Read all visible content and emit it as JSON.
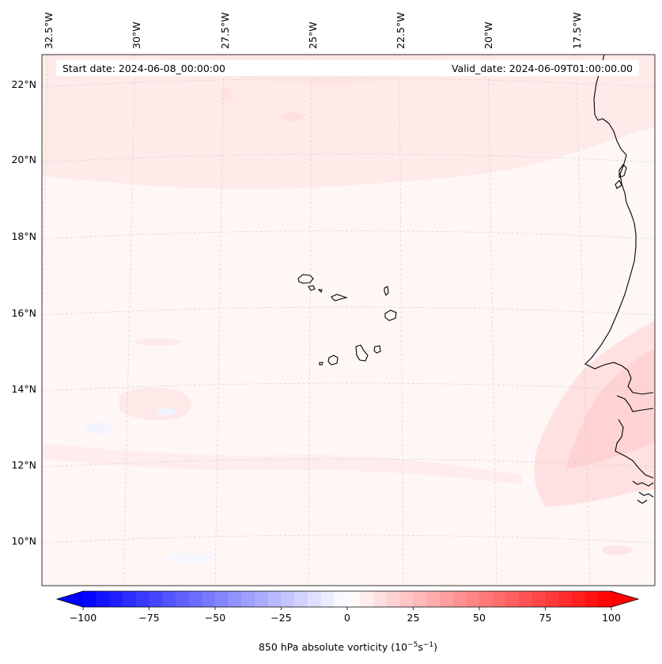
{
  "header": {
    "start_date": "Start date: 2024-06-08_00:00:00",
    "valid_date": "Valid_date: 2024-06-09T01:00:00.00"
  },
  "lon_labels": [
    "32.5°W",
    "30°W",
    "27.5°W",
    "25°W",
    "22.5°W",
    "20°W",
    "17.5°W"
  ],
  "lat_labels": [
    "22°N",
    "20°N",
    "18°N",
    "16°N",
    "14°N",
    "12°N",
    "10°N"
  ],
  "colorbar": {
    "label": "850 hPa absolute vorticity (10",
    "label_exp1": "−5",
    "label_mid": "s",
    "label_exp2": "−1",
    "label_end": ")",
    "ticks": [
      "−100",
      "−75",
      "−50",
      "−25",
      "0",
      "25",
      "50",
      "75",
      "100"
    ],
    "min": -100,
    "max": 100,
    "step": 5,
    "extend": "both",
    "color_negative": "#0000ff",
    "color_positive": "#ff0000",
    "color_zero": "#ffffff"
  },
  "map": {
    "lon_range_deg": [
      -33,
      -16
    ],
    "lat_range_deg": [
      9,
      23
    ],
    "background_color": "#fff6f6",
    "coastline_color": "#000000",
    "features": [
      "cape-verde-islands",
      "west-africa-coastline",
      "senegal-coast",
      "guinea-bissau-coast"
    ]
  }
}
